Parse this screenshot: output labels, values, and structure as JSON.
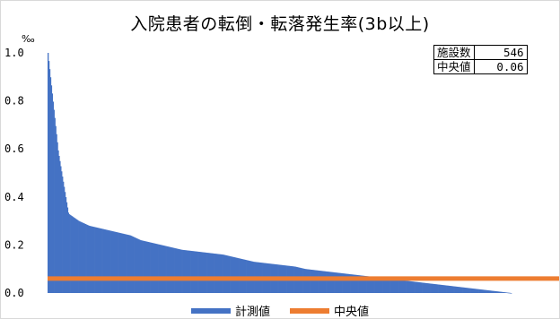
{
  "chart_data": {
    "type": "bar",
    "title": "入院患者の転倒・転落発生率(3b以上)",
    "unit": "‰",
    "ylim": [
      0,
      1.0
    ],
    "yticks": [
      "1.0",
      "0.8",
      "0.6",
      "0.4",
      "0.2",
      "0.0"
    ],
    "grid": false,
    "legend_position": "bottom",
    "stats": [
      {
        "label": "施設数",
        "value": "546"
      },
      {
        "label": "中央値",
        "value": "0.06"
      }
    ],
    "series": [
      {
        "name": "計測値",
        "color": "#4472C4",
        "note_sorted_descending": true,
        "count": 546,
        "values": [
          1.0,
          0.59,
          0.33,
          0.3,
          0.28,
          0.27,
          0.26,
          0.25,
          0.24,
          0.22,
          0.21,
          0.2,
          0.19,
          0.18,
          0.175,
          0.17,
          0.165,
          0.16,
          0.15,
          0.14,
          0.13,
          0.125,
          0.12,
          0.115,
          0.11,
          0.1,
          0.095,
          0.09,
          0.085,
          0.08,
          0.075,
          0.07,
          0.065,
          0.06,
          0.055,
          0.05,
          0.045,
          0.04,
          0.035,
          0.03,
          0.025,
          0.02,
          0.015,
          0.01,
          0.005,
          0.0
        ]
      },
      {
        "name": "中央値",
        "color": "#ED7D31",
        "value": 0.06
      }
    ]
  }
}
